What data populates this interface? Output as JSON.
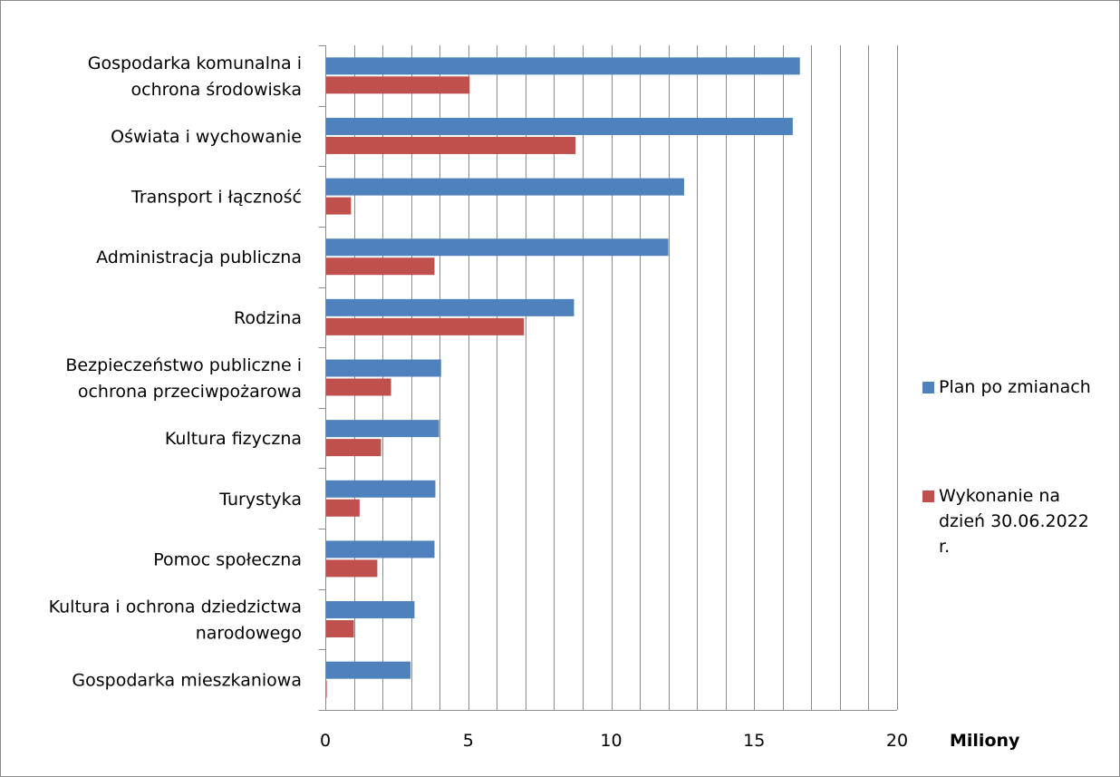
{
  "chart_data": {
    "type": "bar",
    "orientation": "horizontal",
    "categories": [
      [
        "Gospodarka komunalna i",
        "ochrona środowiska"
      ],
      [
        "Oświata i wychowanie"
      ],
      [
        "Transport i łączność"
      ],
      [
        "Administracja publiczna"
      ],
      [
        "Rodzina"
      ],
      [
        "Bezpieczeństwo publiczne i",
        "ochrona przeciwpożarowa"
      ],
      [
        "Kultura fizyczna"
      ],
      [
        "Turystyka"
      ],
      [
        "Pomoc społeczna"
      ],
      [
        "Kultura i ochrona dziedzictwa",
        "narodowego"
      ],
      [
        "Gospodarka mieszkaniowa"
      ]
    ],
    "series": [
      {
        "name_lines": [
          "Plan po zmianach"
        ],
        "color": "#4f81bd",
        "values": [
          16.6,
          16.35,
          12.55,
          12.0,
          8.7,
          4.05,
          3.98,
          3.85,
          3.82,
          3.12,
          2.98
        ]
      },
      {
        "name_lines": [
          "Wykonanie na",
          "dzień 30.06.2022",
          "r."
        ],
        "color": "#c0504d",
        "values": [
          5.05,
          8.75,
          0.9,
          3.82,
          6.95,
          2.3,
          1.95,
          1.2,
          1.82,
          1.0,
          0.05
        ]
      }
    ],
    "xlim": [
      0,
      20
    ],
    "xticks": [
      "0",
      "5",
      "10",
      "15",
      "20"
    ],
    "minor_gridline_step": 1,
    "unit_label": "Miliony",
    "grid": true,
    "legend_position": "right"
  }
}
